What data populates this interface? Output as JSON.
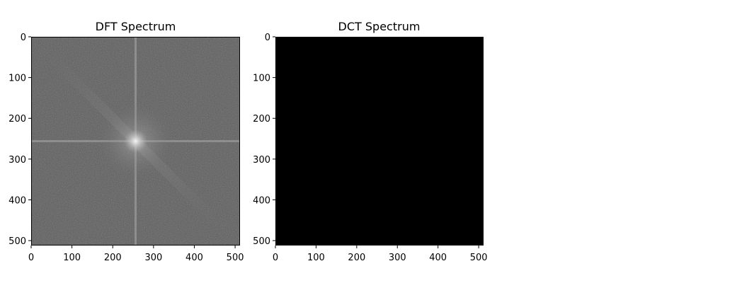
{
  "chart_data": [
    {
      "type": "heatmap",
      "title": "DFT Spectrum",
      "xlabel": "",
      "ylabel": "",
      "image_size": [
        512,
        512
      ],
      "xlim": [
        0,
        512
      ],
      "ylim": [
        512,
        0
      ],
      "xticks": [
        0,
        100,
        200,
        300,
        400,
        500
      ],
      "yticks": [
        0,
        100,
        200,
        300,
        400,
        500
      ],
      "colormap": "gray",
      "background_color": "#5c5c5c",
      "noise_color": "#606060",
      "bright_color": "#f0f0f0",
      "cross_lines": {
        "x": 256,
        "y": 256,
        "color": "#9a9a9a"
      },
      "diagonal_streak": {
        "from": [
          0,
          0
        ],
        "to": [
          512,
          512
        ],
        "color": "#7a7a7a"
      },
      "center_peak": [
        256,
        256
      ],
      "grid": false
    },
    {
      "type": "heatmap",
      "title": "DCT Spectrum",
      "xlabel": "",
      "ylabel": "",
      "image_size": [
        512,
        512
      ],
      "xlim": [
        0,
        512
      ],
      "ylim": [
        512,
        0
      ],
      "xticks": [
        0,
        100,
        200,
        300,
        400,
        500
      ],
      "yticks": [
        0,
        100,
        200,
        300,
        400,
        500
      ],
      "colormap": "gray",
      "background_color": "#000000",
      "grid": false
    }
  ]
}
